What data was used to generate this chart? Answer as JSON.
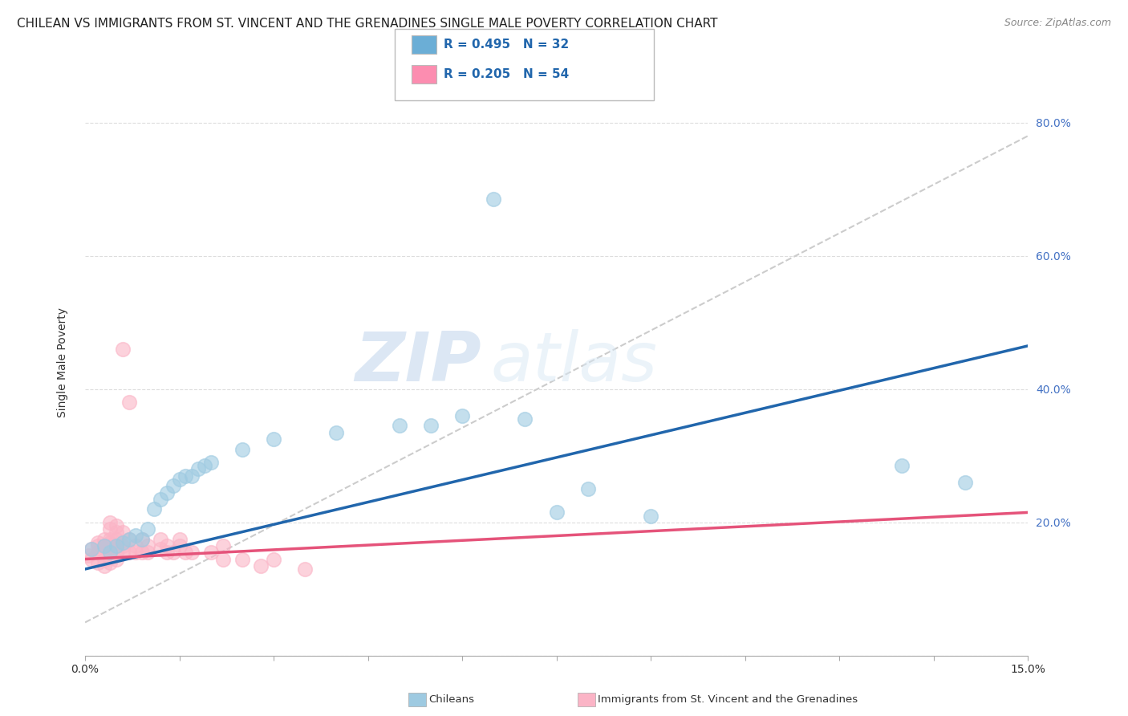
{
  "title": "CHILEAN VS IMMIGRANTS FROM ST. VINCENT AND THE GRENADINES SINGLE MALE POVERTY CORRELATION CHART",
  "source": "Source: ZipAtlas.com",
  "ylabel": "Single Male Poverty",
  "y_ticks": [
    0.0,
    0.2,
    0.4,
    0.6,
    0.8
  ],
  "y_tick_labels": [
    "",
    "20.0%",
    "40.0%",
    "60.0%",
    "80.0%"
  ],
  "xlim": [
    0.0,
    0.15
  ],
  "ylim": [
    0.0,
    0.88
  ],
  "legend_entries": [
    {
      "label": "R = 0.495   N = 32",
      "color": "#6baed6"
    },
    {
      "label": "R = 0.205   N = 54",
      "color": "#fc8db0"
    }
  ],
  "legend_labels_bottom": [
    "Chileans",
    "Immigrants from St. Vincent and the Grenadines"
  ],
  "watermark_zip": "ZIP",
  "watermark_atlas": "atlas",
  "blue_scatter": [
    [
      0.001,
      0.16
    ],
    [
      0.003,
      0.165
    ],
    [
      0.004,
      0.155
    ],
    [
      0.005,
      0.165
    ],
    [
      0.006,
      0.17
    ],
    [
      0.007,
      0.175
    ],
    [
      0.008,
      0.18
    ],
    [
      0.009,
      0.175
    ],
    [
      0.01,
      0.19
    ],
    [
      0.011,
      0.22
    ],
    [
      0.012,
      0.235
    ],
    [
      0.013,
      0.245
    ],
    [
      0.014,
      0.255
    ],
    [
      0.015,
      0.265
    ],
    [
      0.016,
      0.27
    ],
    [
      0.017,
      0.27
    ],
    [
      0.018,
      0.28
    ],
    [
      0.019,
      0.285
    ],
    [
      0.02,
      0.29
    ],
    [
      0.025,
      0.31
    ],
    [
      0.03,
      0.325
    ],
    [
      0.04,
      0.335
    ],
    [
      0.05,
      0.345
    ],
    [
      0.055,
      0.345
    ],
    [
      0.06,
      0.36
    ],
    [
      0.065,
      0.685
    ],
    [
      0.07,
      0.355
    ],
    [
      0.075,
      0.215
    ],
    [
      0.08,
      0.25
    ],
    [
      0.09,
      0.21
    ],
    [
      0.13,
      0.285
    ],
    [
      0.14,
      0.26
    ]
  ],
  "pink_scatter": [
    [
      0.0005,
      0.15
    ],
    [
      0.001,
      0.145
    ],
    [
      0.001,
      0.16
    ],
    [
      0.002,
      0.14
    ],
    [
      0.002,
      0.155
    ],
    [
      0.002,
      0.165
    ],
    [
      0.002,
      0.17
    ],
    [
      0.003,
      0.135
    ],
    [
      0.003,
      0.145
    ],
    [
      0.003,
      0.155
    ],
    [
      0.003,
      0.165
    ],
    [
      0.003,
      0.175
    ],
    [
      0.004,
      0.14
    ],
    [
      0.004,
      0.155
    ],
    [
      0.004,
      0.165
    ],
    [
      0.004,
      0.17
    ],
    [
      0.004,
      0.175
    ],
    [
      0.004,
      0.19
    ],
    [
      0.004,
      0.2
    ],
    [
      0.005,
      0.145
    ],
    [
      0.005,
      0.155
    ],
    [
      0.005,
      0.165
    ],
    [
      0.005,
      0.175
    ],
    [
      0.005,
      0.185
    ],
    [
      0.005,
      0.195
    ],
    [
      0.006,
      0.155
    ],
    [
      0.006,
      0.165
    ],
    [
      0.006,
      0.185
    ],
    [
      0.006,
      0.46
    ],
    [
      0.007,
      0.155
    ],
    [
      0.007,
      0.175
    ],
    [
      0.007,
      0.38
    ],
    [
      0.008,
      0.155
    ],
    [
      0.008,
      0.165
    ],
    [
      0.009,
      0.155
    ],
    [
      0.009,
      0.175
    ],
    [
      0.01,
      0.155
    ],
    [
      0.01,
      0.165
    ],
    [
      0.012,
      0.16
    ],
    [
      0.012,
      0.175
    ],
    [
      0.013,
      0.155
    ],
    [
      0.013,
      0.165
    ],
    [
      0.014,
      0.155
    ],
    [
      0.015,
      0.165
    ],
    [
      0.015,
      0.175
    ],
    [
      0.016,
      0.155
    ],
    [
      0.017,
      0.155
    ],
    [
      0.02,
      0.155
    ],
    [
      0.022,
      0.145
    ],
    [
      0.022,
      0.165
    ],
    [
      0.025,
      0.145
    ],
    [
      0.028,
      0.135
    ],
    [
      0.03,
      0.145
    ],
    [
      0.035,
      0.13
    ]
  ],
  "blue_line_x": [
    0.0,
    0.15
  ],
  "blue_line_y": [
    0.13,
    0.465
  ],
  "pink_line_x": [
    0.0,
    0.15
  ],
  "pink_line_y": [
    0.145,
    0.215
  ],
  "gray_dash_line_x": [
    0.0,
    0.15
  ],
  "gray_dash_line_y": [
    0.05,
    0.78
  ],
  "blue_color": "#9ecae1",
  "pink_color": "#fbb4c6",
  "blue_line_color": "#2166ac",
  "pink_line_color": "#e5537a",
  "gray_dash_color": "#cccccc",
  "background_color": "#ffffff",
  "title_fontsize": 11,
  "source_fontsize": 9
}
